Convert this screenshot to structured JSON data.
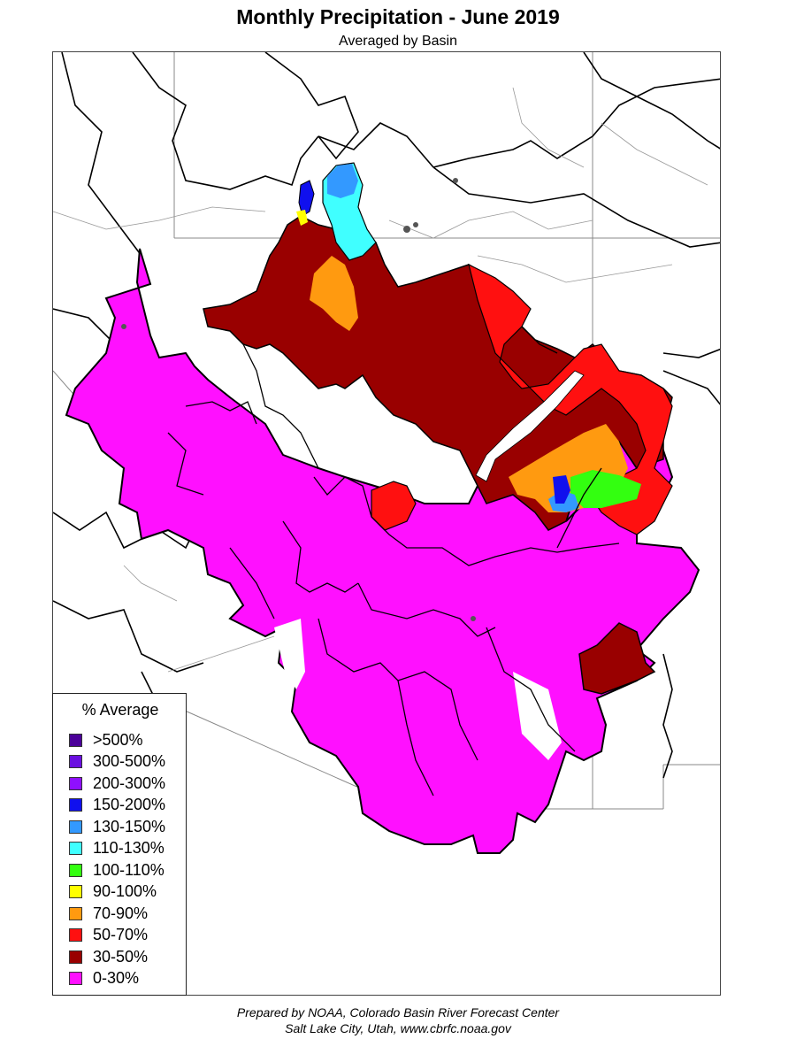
{
  "title": "Monthly Precipitation - June 2019",
  "subtitle": "Averaged by Basin",
  "legend": {
    "title": "% Average",
    "items": [
      {
        "label": ">500%",
        "color": "#4b0099"
      },
      {
        "label": "300-500%",
        "color": "#6a0fe0"
      },
      {
        "label": "200-300%",
        "color": "#8f10ff"
      },
      {
        "label": "150-200%",
        "color": "#1010ee"
      },
      {
        "label": "130-150%",
        "color": "#3399ff"
      },
      {
        "label": "110-130%",
        "color": "#40ffff"
      },
      {
        "label": "100-110%",
        "color": "#33ff10"
      },
      {
        "label": "90-100%",
        "color": "#ffff00"
      },
      {
        "label": "70-90%",
        "color": "#ff9a10"
      },
      {
        "label": "50-70%",
        "color": "#ff1010"
      },
      {
        "label": "30-50%",
        "color": "#990000"
      },
      {
        "label": "0-30%",
        "color": "#ff10ff"
      }
    ]
  },
  "footer": {
    "line1": "Prepared by NOAA, Colorado Basin River Forecast Center",
    "line2": "Salt Lake City, Utah, www.cbrfc.noaa.gov"
  }
}
